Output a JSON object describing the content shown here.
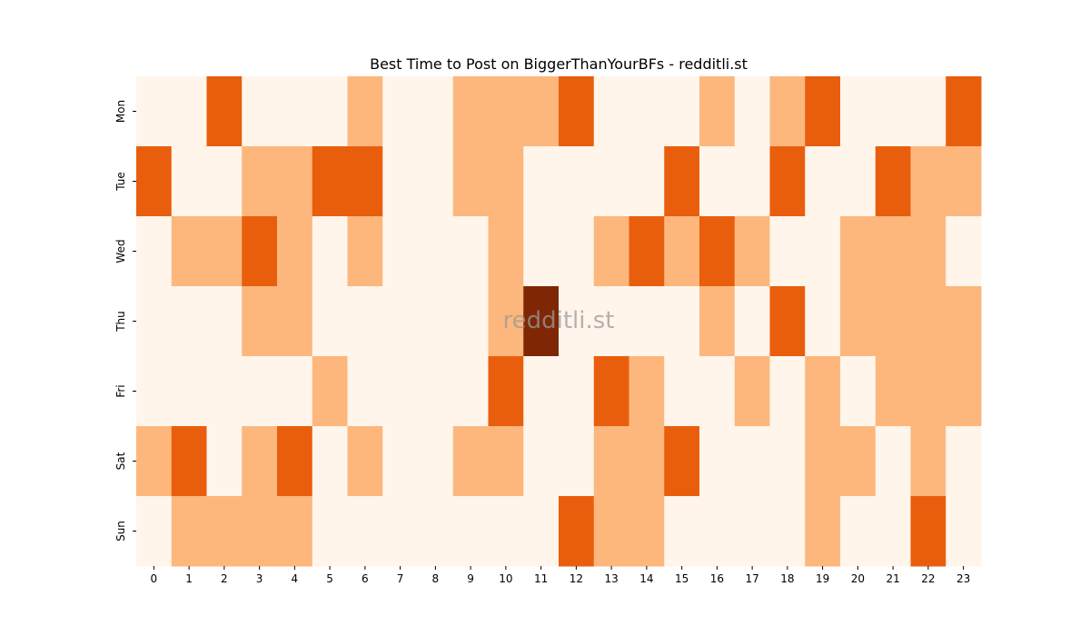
{
  "chart_data": {
    "type": "heatmap",
    "title": "Best Time to Post on BiggerThanYourBFs - redditli.st",
    "watermark": "redditli.st",
    "x_labels": [
      "0",
      "1",
      "2",
      "3",
      "4",
      "5",
      "6",
      "7",
      "8",
      "9",
      "10",
      "11",
      "12",
      "13",
      "14",
      "15",
      "16",
      "17",
      "18",
      "19",
      "20",
      "21",
      "22",
      "23"
    ],
    "y_labels": [
      "Mon",
      "Tue",
      "Wed",
      "Thu",
      "Fri",
      "Sat",
      "Sun"
    ],
    "values": [
      [
        0,
        0,
        2,
        0,
        0,
        0,
        1,
        0,
        0,
        1,
        1,
        1,
        2,
        0,
        0,
        0,
        1,
        0,
        1,
        2,
        0,
        0,
        0,
        2
      ],
      [
        2,
        0,
        0,
        1,
        1,
        2,
        2,
        0,
        0,
        1,
        1,
        0,
        0,
        0,
        0,
        2,
        0,
        0,
        2,
        0,
        0,
        2,
        1,
        1
      ],
      [
        0,
        1,
        1,
        2,
        1,
        0,
        1,
        0,
        0,
        0,
        1,
        0,
        0,
        1,
        2,
        1,
        2,
        1,
        0,
        0,
        1,
        1,
        1,
        0
      ],
      [
        0,
        0,
        0,
        1,
        1,
        0,
        0,
        0,
        0,
        0,
        1,
        3,
        0,
        0,
        0,
        0,
        1,
        0,
        2,
        0,
        1,
        1,
        1,
        1
      ],
      [
        0,
        0,
        0,
        0,
        0,
        1,
        0,
        0,
        0,
        0,
        2,
        0,
        0,
        2,
        1,
        0,
        0,
        1,
        0,
        1,
        0,
        1,
        1,
        1
      ],
      [
        1,
        2,
        0,
        1,
        2,
        0,
        1,
        0,
        0,
        1,
        1,
        0,
        0,
        1,
        1,
        2,
        0,
        0,
        0,
        1,
        1,
        0,
        1,
        0
      ],
      [
        0,
        1,
        1,
        1,
        1,
        0,
        0,
        0,
        0,
        0,
        0,
        0,
        2,
        1,
        1,
        0,
        0,
        0,
        0,
        1,
        0,
        0,
        2,
        0
      ]
    ],
    "color_scale": [
      "#fff5eb",
      "#fdb77c",
      "#e95e0d",
      "#7f2704"
    ],
    "xlabel": "",
    "ylabel": ""
  }
}
